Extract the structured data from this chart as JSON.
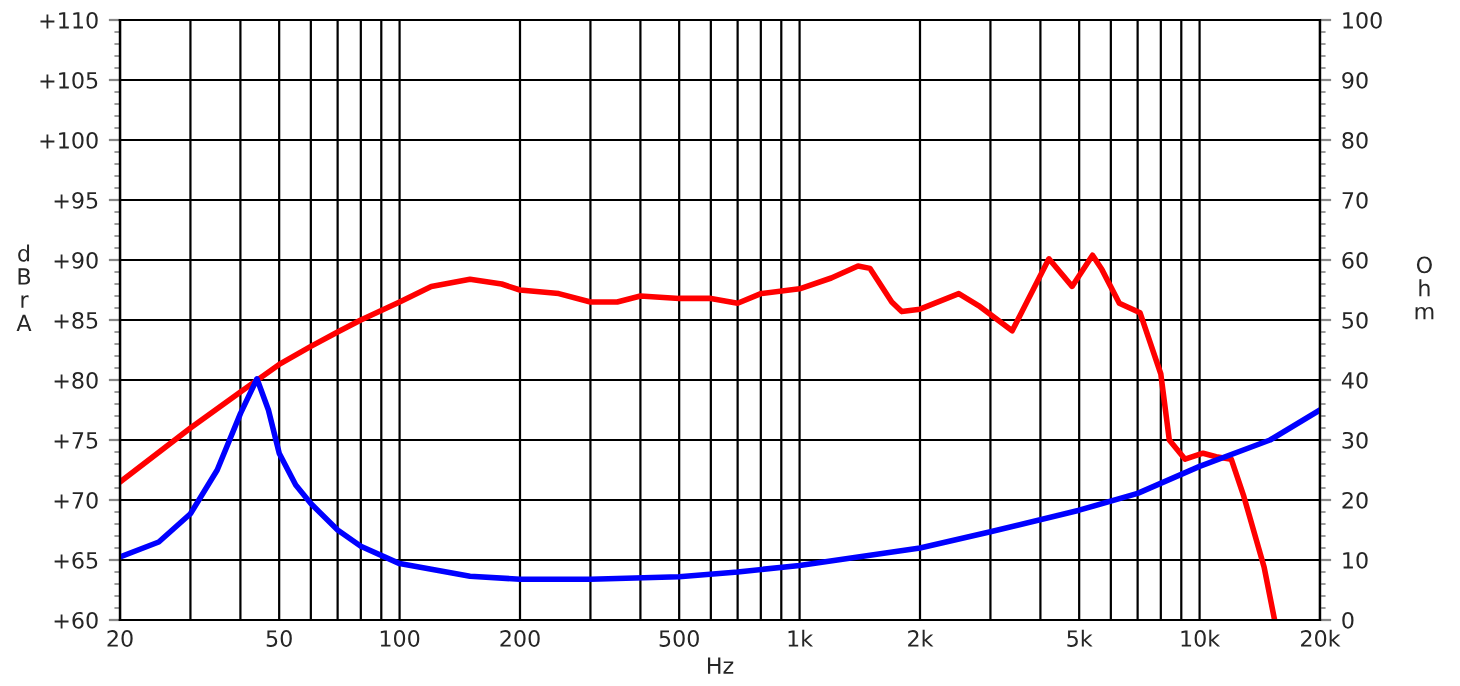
{
  "chart_data": {
    "type": "line",
    "xlabel": "Hz",
    "ylabel": "dBrA",
    "y2label": "Ohm",
    "log": "x",
    "grid": true,
    "line_style": "solid",
    "marker": "none",
    "xlim": [
      20,
      20000
    ],
    "xticks": [
      20,
      {
        "value": 30,
        "label": null
      },
      {
        "value": 40,
        "label": null
      },
      50,
      {
        "value": 60,
        "label": null
      },
      {
        "value": 70,
        "label": null
      },
      {
        "value": 80,
        "label": null
      },
      {
        "value": 90,
        "label": null
      },
      100,
      200,
      {
        "value": 300,
        "label": null
      },
      {
        "value": 400,
        "label": null
      },
      500,
      {
        "value": 600,
        "label": null
      },
      {
        "value": 700,
        "label": null
      },
      {
        "value": 800,
        "label": null
      },
      {
        "value": 900,
        "label": null
      },
      {
        "value": 1000,
        "label": "1k"
      },
      {
        "value": 2000,
        "label": "2k"
      },
      {
        "value": 3000,
        "label": null
      },
      {
        "value": 4000,
        "label": null
      },
      {
        "value": 5000,
        "label": "5k"
      },
      {
        "value": 6000,
        "label": null
      },
      {
        "value": 7000,
        "label": null
      },
      {
        "value": 8000,
        "label": null
      },
      {
        "value": 9000,
        "label": null
      },
      {
        "value": 10000,
        "label": "10k"
      },
      {
        "value": 20000,
        "label": "20k"
      }
    ],
    "ylim": [
      60,
      110
    ],
    "yticks": [
      {
        "value": 60,
        "label": "+60"
      },
      {
        "value": 65,
        "label": "+65"
      },
      {
        "value": 70,
        "label": "+70"
      },
      {
        "value": 75,
        "label": "+75"
      },
      {
        "value": 80,
        "label": "+80"
      },
      {
        "value": 85,
        "label": "+85"
      },
      {
        "value": 90,
        "label": "+90"
      },
      {
        "value": 95,
        "label": "+95"
      },
      {
        "value": 100,
        "label": "+100"
      },
      {
        "value": 105,
        "label": "+105"
      },
      {
        "value": 110,
        "label": "+110"
      }
    ],
    "y2lim": [
      0,
      100
    ],
    "y2ticks": [
      0,
      10,
      20,
      30,
      40,
      50,
      60,
      70,
      80,
      90,
      100
    ],
    "series": [
      {
        "color": "#ff0000",
        "x": [
          20,
          30,
          40,
          50,
          60,
          70,
          80,
          100,
          120,
          150,
          180,
          200,
          250,
          300,
          350,
          400,
          500,
          600,
          700,
          800,
          1000,
          1200,
          1400,
          1500,
          1700,
          1800,
          2000,
          2500,
          2800,
          3400,
          3700,
          4200,
          4800,
          5400,
          5700,
          6300,
          7100,
          8000,
          8400,
          9200,
          10200,
          11000,
          12000,
          12900,
          14500,
          15400
        ],
        "values": [
          71.5,
          76,
          79,
          81.3,
          82.8,
          84,
          85,
          86.5,
          87.8,
          88.4,
          88,
          87.5,
          87.2,
          86.5,
          86.5,
          87,
          86.8,
          86.8,
          86.4,
          87.2,
          87.6,
          88.5,
          89.5,
          89.3,
          86.5,
          85.7,
          85.9,
          87.2,
          86.2,
          84.1,
          86.5,
          90.1,
          87.8,
          90.4,
          89.2,
          86.4,
          85.6,
          80.5,
          75,
          73.4,
          73.9,
          73.6,
          73.4,
          70.3,
          64.4,
          60
        ]
      },
      {
        "color": "#0000ff",
        "axis": "y2",
        "x": [
          20,
          25,
          30,
          35,
          40,
          44,
          47,
          50,
          55,
          60,
          70,
          80,
          100,
          150,
          200,
          300,
          500,
          700,
          1000,
          1500,
          2000,
          3000,
          5000,
          7000,
          10000,
          15000,
          20000
        ],
        "values": [
          10.5,
          13,
          17.7,
          25,
          34.4,
          40.2,
          35,
          27.8,
          22.5,
          19.4,
          15,
          12.3,
          9.4,
          7.3,
          6.8,
          6.8,
          7.2,
          8,
          9.1,
          10.8,
          12,
          14.7,
          18.3,
          21.1,
          25.6,
          30,
          35
        ]
      }
    ]
  }
}
